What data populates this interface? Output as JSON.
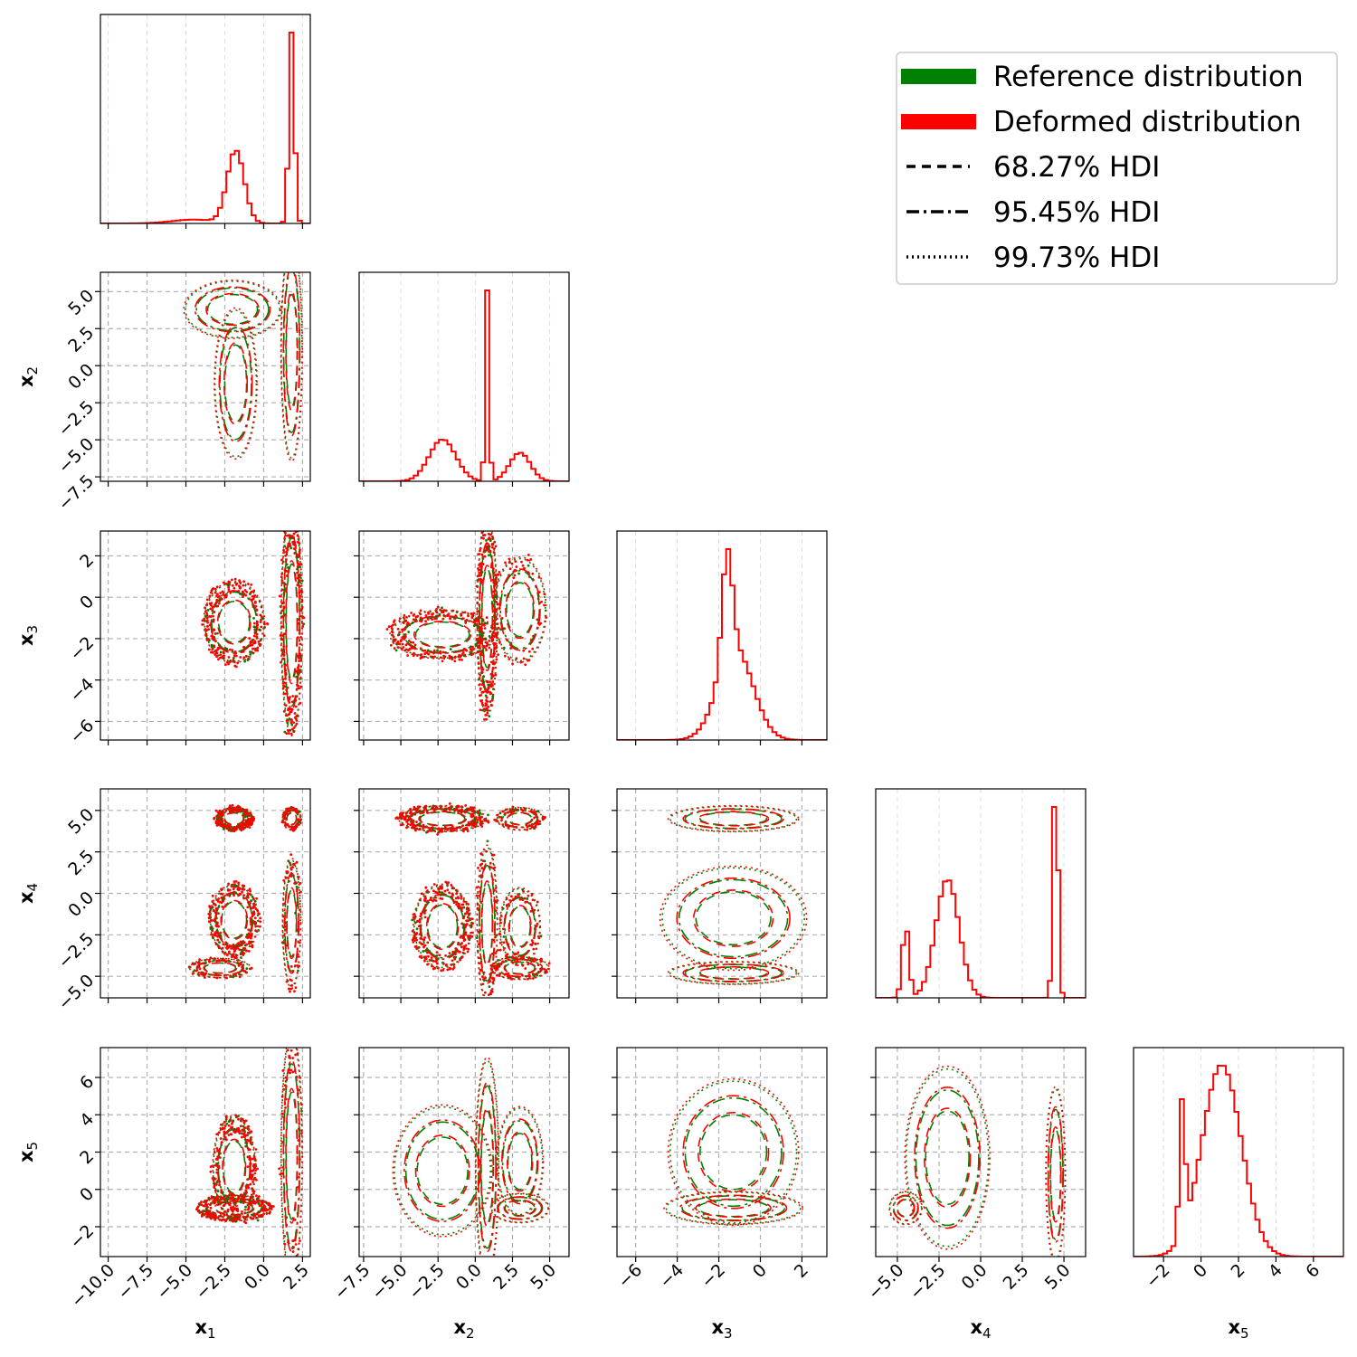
{
  "chart_data": {
    "type": "corner",
    "variables": [
      {
        "name": "x",
        "sub": "1",
        "range": [
          -10.5,
          3.0
        ],
        "ticks": [
          -10.0,
          -7.5,
          -5.0,
          -2.5,
          0.0,
          2.5
        ],
        "tick_labels": [
          "−10.0",
          "−7.5",
          "−5.0",
          "−2.5",
          "0.0",
          "2.5"
        ]
      },
      {
        "name": "x",
        "sub": "2",
        "range": [
          -7.8,
          6.3
        ],
        "ticks": [
          -7.5,
          -5.0,
          -2.5,
          0.0,
          2.5,
          5.0
        ],
        "tick_labels": [
          "−7.5",
          "−5.0",
          "−2.5",
          "0.0",
          "2.5",
          "5.0"
        ]
      },
      {
        "name": "x",
        "sub": "3",
        "range": [
          -6.9,
          3.2
        ],
        "ticks": [
          -6,
          -4,
          -2,
          0,
          2
        ],
        "tick_labels": [
          "−6",
          "−4",
          "−2",
          "0",
          "2"
        ]
      },
      {
        "name": "x",
        "sub": "4",
        "range": [
          -6.3,
          6.3
        ],
        "ticks": [
          -5.0,
          -2.5,
          0.0,
          2.5,
          5.0
        ],
        "tick_labels": [
          "−5.0",
          "−2.5",
          "0.0",
          "2.5",
          "5.0"
        ]
      },
      {
        "name": "x",
        "sub": "5",
        "range": [
          -3.6,
          7.6
        ],
        "ticks": [
          -2,
          0,
          2,
          4,
          6
        ],
        "tick_labels": [
          "−2",
          "0",
          "2",
          "4",
          "6"
        ]
      }
    ],
    "marginals": [
      {
        "var": 0,
        "peaks": [
          {
            "mu": -1.8,
            "sigma": 0.55,
            "w": 0.38
          },
          {
            "mu": 1.8,
            "sigma": 0.18,
            "w": 1.0
          },
          {
            "mu": -4.5,
            "sigma": 1.4,
            "w": 0.02
          }
        ]
      },
      {
        "var": 1,
        "peaks": [
          {
            "mu": -2.2,
            "sigma": 0.9,
            "w": 0.22
          },
          {
            "mu": 0.8,
            "sigma": 0.13,
            "w": 1.0
          },
          {
            "mu": 3.0,
            "sigma": 0.7,
            "w": 0.15
          }
        ]
      },
      {
        "var": 2,
        "peaks": [
          {
            "mu": -1.6,
            "sigma": 0.25,
            "w": 0.55
          },
          {
            "mu": -1.2,
            "sigma": 0.85,
            "w": 0.45
          }
        ]
      },
      {
        "var": 3,
        "peaks": [
          {
            "mu": -4.5,
            "sigma": 0.2,
            "w": 0.32
          },
          {
            "mu": -2.0,
            "sigma": 0.7,
            "w": 0.52
          },
          {
            "mu": 4.5,
            "sigma": 0.15,
            "w": 1.0
          }
        ]
      },
      {
        "var": 4,
        "peaks": [
          {
            "mu": -1.0,
            "sigma": 0.15,
            "w": 0.7
          },
          {
            "mu": 1.1,
            "sigma": 1.05,
            "w": 1.0
          }
        ]
      }
    ],
    "contours": [
      {
        "x": 0,
        "y": 1,
        "blobs": [
          [
            -2.0,
            3.8,
            1.6,
            1.0
          ],
          [
            -1.8,
            -1.2,
            0.7,
            2.6
          ],
          [
            1.8,
            1.0,
            0.35,
            3.8
          ]
        ]
      },
      {
        "x": 0,
        "y": 2,
        "blobs": [
          [
            -1.9,
            -1.2,
            1.0,
            1.0
          ],
          [
            1.8,
            -1.2,
            0.35,
            2.8
          ]
        ]
      },
      {
        "x": 0,
        "y": 3,
        "blobs": [
          [
            -1.9,
            4.5,
            0.6,
            0.35
          ],
          [
            -1.9,
            -1.6,
            0.8,
            1.1
          ],
          [
            1.8,
            -1.8,
            0.3,
            2.0
          ],
          [
            1.8,
            4.5,
            0.3,
            0.35
          ],
          [
            -2.8,
            -4.5,
            1.0,
            0.3
          ]
        ]
      },
      {
        "x": 0,
        "y": 4,
        "blobs": [
          [
            -1.9,
            1.2,
            0.7,
            1.4
          ],
          [
            -1.9,
            -1.0,
            1.2,
            0.35
          ],
          [
            1.8,
            1.8,
            0.35,
            3.4
          ]
        ]
      },
      {
        "x": 1,
        "y": 2,
        "blobs": [
          [
            -2.2,
            -1.8,
            1.8,
            0.6
          ],
          [
            0.8,
            -1.0,
            0.35,
            2.4
          ],
          [
            3.0,
            -0.6,
            0.9,
            1.3
          ]
        ]
      },
      {
        "x": 1,
        "y": 3,
        "blobs": [
          [
            -2.2,
            4.5,
            1.5,
            0.4
          ],
          [
            -2.2,
            -2.0,
            1.0,
            1.3
          ],
          [
            0.8,
            -1.8,
            0.35,
            2.4
          ],
          [
            3.0,
            -2.0,
            0.7,
            1.2
          ],
          [
            3.0,
            -4.5,
            1.0,
            0.35
          ],
          [
            3.0,
            4.5,
            0.8,
            0.35
          ]
        ]
      },
      {
        "x": 1,
        "y": 4,
        "blobs": [
          [
            -2.2,
            1.0,
            1.7,
            1.8
          ],
          [
            0.8,
            1.2,
            0.4,
            3.0
          ],
          [
            3.0,
            -1.0,
            1.0,
            0.4
          ],
          [
            3.0,
            1.5,
            0.8,
            1.5
          ]
        ]
      },
      {
        "x": 2,
        "y": 3,
        "blobs": [
          [
            -1.3,
            4.5,
            1.6,
            0.4
          ],
          [
            -1.3,
            -1.5,
            1.8,
            1.6
          ],
          [
            -1.3,
            -4.8,
            1.6,
            0.35
          ]
        ]
      },
      {
        "x": 2,
        "y": 4,
        "blobs": [
          [
            -1.3,
            2.0,
            1.6,
            2.0
          ],
          [
            -1.3,
            -1.0,
            1.7,
            0.45
          ]
        ]
      },
      {
        "x": 3,
        "y": 4,
        "blobs": [
          [
            -2.0,
            1.7,
            1.3,
            2.5
          ],
          [
            -4.5,
            -1.0,
            0.5,
            0.45
          ],
          [
            4.5,
            0.8,
            0.3,
            2.4
          ]
        ]
      }
    ],
    "scatter_panels": [
      {
        "x": 0,
        "y": 2,
        "color": "#ff0000"
      },
      {
        "x": 0,
        "y": 3,
        "color": "#ff0000"
      },
      {
        "x": 0,
        "y": 4,
        "color": "#ff0000"
      },
      {
        "x": 1,
        "y": 2,
        "color": "#ff0000"
      },
      {
        "x": 1,
        "y": 3,
        "color": "#ff0000"
      }
    ],
    "series": [
      {
        "name": "Reference distribution",
        "color": "#008000"
      },
      {
        "name": "Deformed distribution",
        "color": "#ff0000"
      }
    ],
    "hdi_levels": [
      {
        "label": "68.27% HDI",
        "dash": "10,7"
      },
      {
        "label": "95.45% HDI",
        "dash": "14,5,3,5"
      },
      {
        "label": "99.73% HDI",
        "dash": "2,4"
      }
    ],
    "grid": true,
    "legend_position": "top-right"
  }
}
